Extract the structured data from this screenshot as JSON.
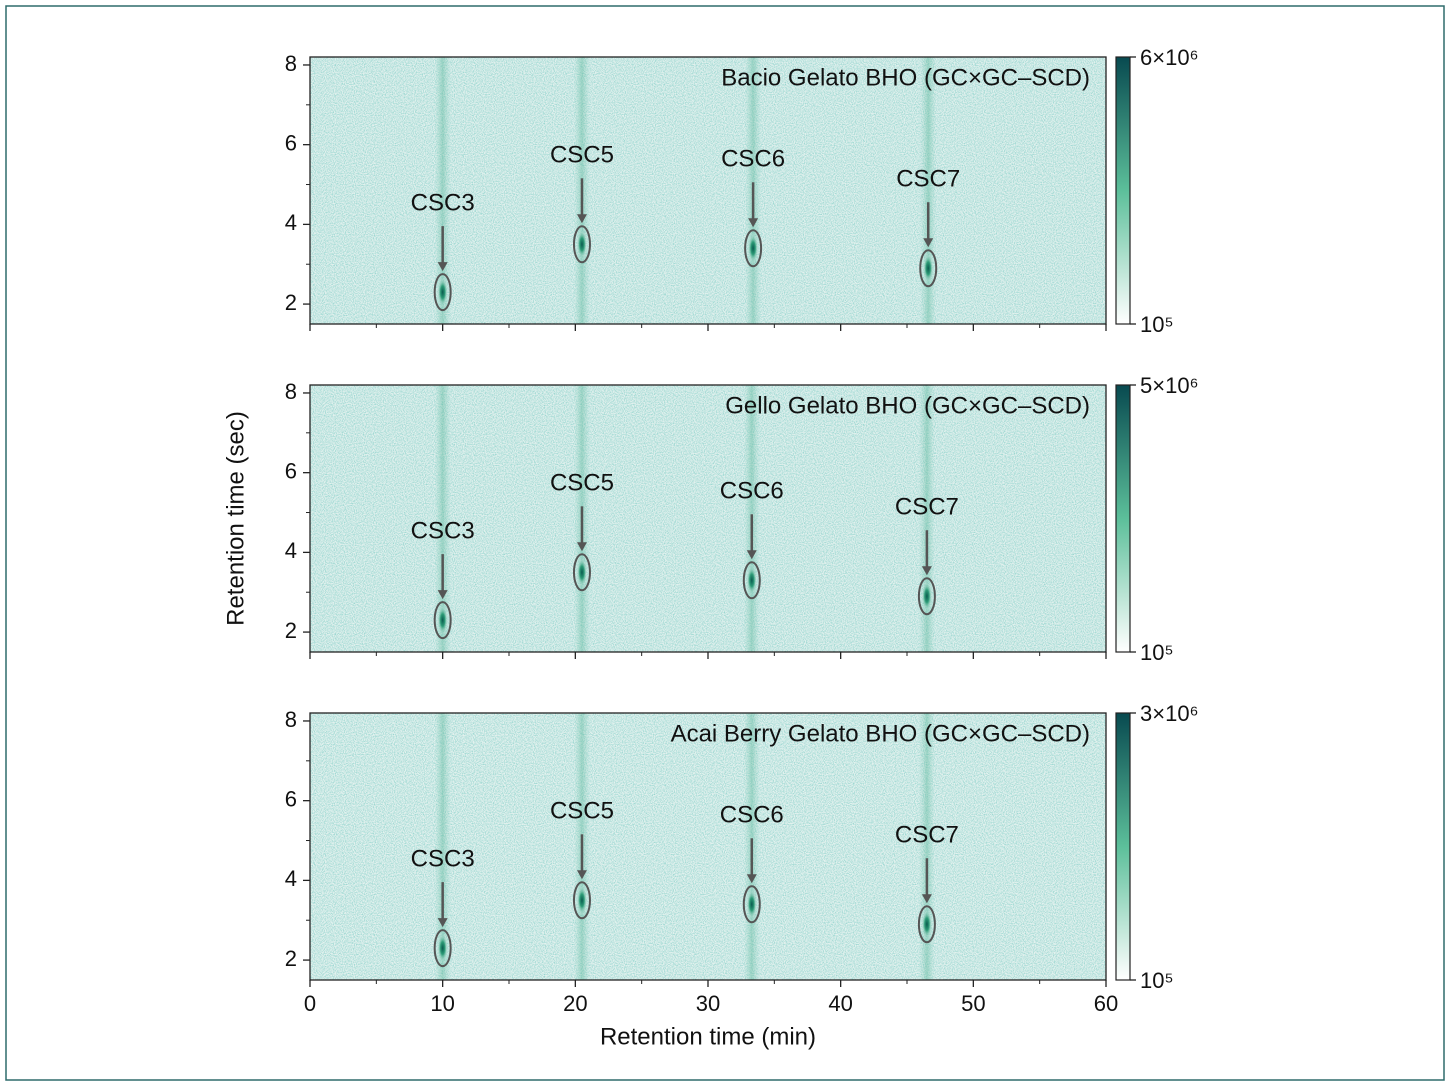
{
  "chart_data": [
    {
      "type": "heatmap",
      "title": "Bacio Gelato BHO (GC×GC–SCD)",
      "xlim": [
        0,
        60
      ],
      "xticks": [
        0,
        10,
        20,
        30,
        40,
        50,
        60
      ],
      "xminorticks": [
        5,
        15,
        25,
        35,
        45,
        55
      ],
      "show_xticklabels": false,
      "ylim": [
        1.5,
        8.2
      ],
      "yticks": [
        2,
        4,
        6,
        8
      ],
      "yminorticks": [
        3,
        5,
        7
      ],
      "colormap": [
        "#ffffff",
        "#5cbf9a",
        "#084a50"
      ],
      "background": "#e2f1ee",
      "clim": [
        100000,
        6000000
      ],
      "log_color": true,
      "cticks": [
        {
          "value": 6000000,
          "label": "6×10⁶"
        },
        {
          "value": 100000,
          "label": "10⁵"
        }
      ],
      "peaks": [
        {
          "label": "CSC3",
          "x": 10,
          "y": 2.3
        },
        {
          "label": "CSC5",
          "x": 20.5,
          "y": 3.5
        },
        {
          "label": "CSC6",
          "x": 33.4,
          "y": 3.4
        },
        {
          "label": "CSC7",
          "x": 46.6,
          "y": 2.9
        }
      ]
    },
    {
      "type": "heatmap",
      "title": "Gello Gelato BHO (GC×GC–SCD)",
      "ylabel": "Retention time (sec)",
      "xlim": [
        0,
        60
      ],
      "xticks": [
        0,
        10,
        20,
        30,
        40,
        50,
        60
      ],
      "xminorticks": [
        5,
        15,
        25,
        35,
        45,
        55
      ],
      "show_xticklabels": false,
      "ylim": [
        1.5,
        8.2
      ],
      "yticks": [
        2,
        4,
        6,
        8
      ],
      "yminorticks": [
        3,
        5,
        7
      ],
      "colormap": [
        "#ffffff",
        "#5cbf9a",
        "#084a50"
      ],
      "background": "#e2f1ee",
      "clim": [
        100000,
        5000000
      ],
      "log_color": true,
      "cticks": [
        {
          "value": 5000000,
          "label": "5×10⁶"
        },
        {
          "value": 100000,
          "label": "10⁵"
        }
      ],
      "peaks": [
        {
          "label": "CSC3",
          "x": 10,
          "y": 2.3
        },
        {
          "label": "CSC5",
          "x": 20.5,
          "y": 3.5
        },
        {
          "label": "CSC6",
          "x": 33.3,
          "y": 3.3
        },
        {
          "label": "CSC7",
          "x": 46.5,
          "y": 2.9
        }
      ]
    },
    {
      "type": "heatmap",
      "title": "Acai Berry Gelato BHO (GC×GC–SCD)",
      "xlabel": "Retention time (min)",
      "xlim": [
        0,
        60
      ],
      "xticks": [
        0,
        10,
        20,
        30,
        40,
        50,
        60
      ],
      "xminorticks": [
        5,
        15,
        25,
        35,
        45,
        55
      ],
      "show_xticklabels": true,
      "ylim": [
        1.5,
        8.2
      ],
      "yticks": [
        2,
        4,
        6,
        8
      ],
      "yminorticks": [
        3,
        5,
        7
      ],
      "colormap": [
        "#ffffff",
        "#5cbf9a",
        "#084a50"
      ],
      "background": "#e4f2ef",
      "clim": [
        100000,
        3000000
      ],
      "log_color": true,
      "cticks": [
        {
          "value": 3000000,
          "label": "3×10⁶"
        },
        {
          "value": 100000,
          "label": "10⁵"
        }
      ],
      "peaks": [
        {
          "label": "CSC3",
          "x": 10,
          "y": 2.3
        },
        {
          "label": "CSC5",
          "x": 20.5,
          "y": 3.5
        },
        {
          "label": "CSC6",
          "x": 33.3,
          "y": 3.4
        },
        {
          "label": "CSC7",
          "x": 46.5,
          "y": 2.9
        }
      ]
    }
  ]
}
